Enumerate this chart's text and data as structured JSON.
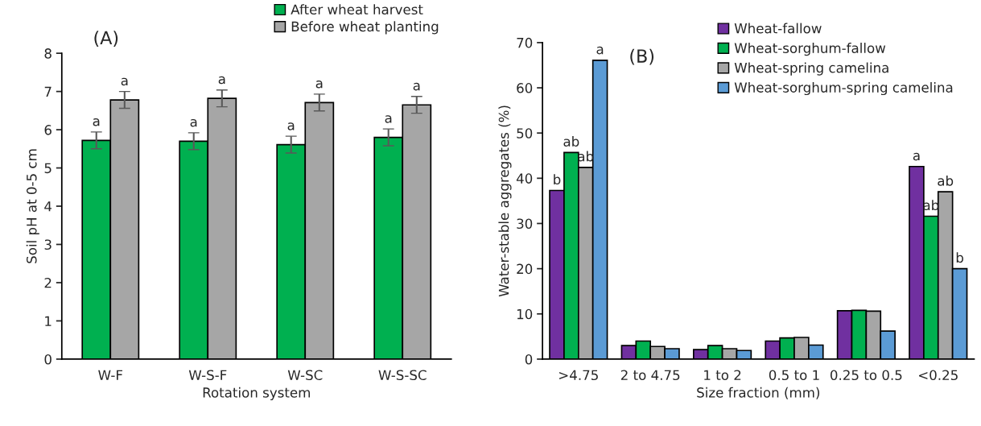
{
  "chart_data": [
    {
      "type": "bar",
      "title": "(A)",
      "xlabel": "Rotation system",
      "ylabel": "Soil pH at 0-5 cm",
      "categories": [
        "W-F",
        "W-S-F",
        "W-SC",
        "W-S-SC"
      ],
      "ylim": [
        0,
        8
      ],
      "yticks": [
        0,
        1,
        2,
        3,
        4,
        5,
        6,
        7,
        8
      ],
      "legend": "top right",
      "grid": false,
      "series": [
        {
          "name": "After wheat harvest",
          "color": "#00b050",
          "values": [
            5.72,
            5.7,
            5.61,
            5.8
          ],
          "errors": [
            0.22,
            0.22,
            0.22,
            0.22
          ],
          "value_labels": [
            "a",
            "a",
            "a",
            "a"
          ]
        },
        {
          "name": "Before wheat planting",
          "color": "#a6a6a6",
          "values": [
            6.78,
            6.82,
            6.71,
            6.65
          ],
          "errors": [
            0.22,
            0.22,
            0.22,
            0.22
          ],
          "value_labels": [
            "a",
            "a",
            "a",
            "a"
          ]
        }
      ]
    },
    {
      "type": "bar",
      "title": "(B)",
      "xlabel": "Size fraction (mm)",
      "ylabel": "Water-stable aggregates (%)",
      "categories": [
        ">4.75",
        "2 to 4.75",
        "1 to 2",
        "0.5 to 1",
        "0.25 to 0.5",
        "<0.25"
      ],
      "ylim": [
        0,
        70
      ],
      "yticks": [
        0,
        10,
        20,
        30,
        40,
        50,
        60,
        70
      ],
      "legend": "top right",
      "grid": false,
      "series": [
        {
          "name": "Wheat-fallow",
          "color": "#7030a0",
          "values": [
            37.3,
            3.0,
            2.1,
            4.0,
            10.7,
            42.6
          ],
          "value_labels": [
            "b",
            null,
            null,
            null,
            null,
            "a"
          ]
        },
        {
          "name": "Wheat-sorghum-fallow",
          "color": "#00b050",
          "values": [
            45.7,
            4.0,
            3.0,
            4.7,
            10.8,
            31.6
          ],
          "value_labels": [
            "ab",
            null,
            null,
            null,
            null,
            "ab"
          ]
        },
        {
          "name": "Wheat-spring camelina",
          "color": "#a6a6a6",
          "values": [
            42.4,
            2.8,
            2.3,
            4.8,
            10.6,
            37.0
          ],
          "value_labels": [
            "ab",
            null,
            null,
            null,
            null,
            "ab"
          ]
        },
        {
          "name": "Wheat-sorghum-spring camelina",
          "color": "#5b9bd5",
          "values": [
            66.1,
            2.3,
            1.9,
            3.1,
            6.2,
            20.0
          ],
          "value_labels": [
            "a",
            null,
            null,
            null,
            null,
            "b"
          ]
        }
      ]
    }
  ]
}
